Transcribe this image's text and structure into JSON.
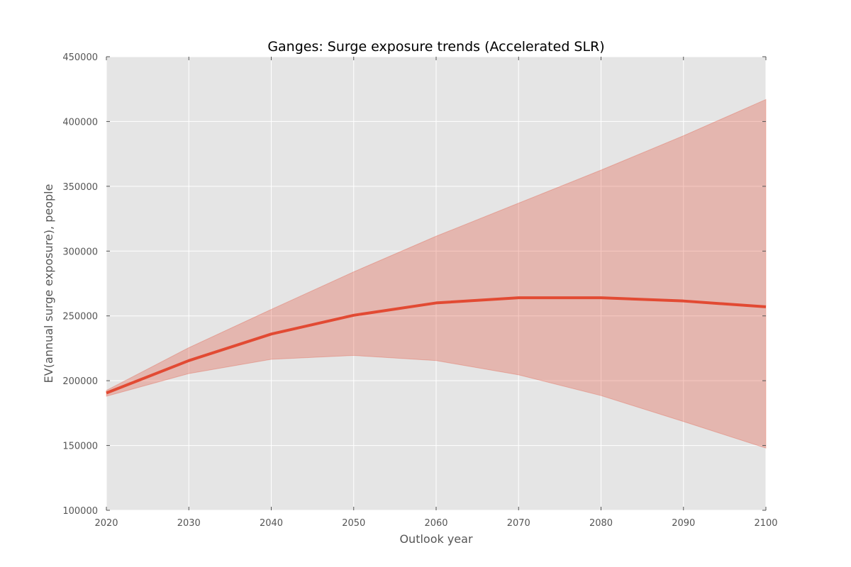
{
  "chart_data": {
    "type": "line",
    "title": "Ganges: Surge exposure trends (Accelerated SLR)",
    "xlabel": "Outlook year",
    "ylabel": "EV(annual surge exposure), people",
    "xlim": [
      2020,
      2100
    ],
    "ylim": [
      100000,
      450000
    ],
    "xticks": [
      "2020",
      "2030",
      "2040",
      "2050",
      "2060",
      "2070",
      "2080",
      "2090",
      "2100"
    ],
    "yticks": [
      "100000",
      "150000",
      "200000",
      "250000",
      "300000",
      "350000",
      "400000",
      "450000"
    ],
    "grid": true,
    "x": [
      2020,
      2030,
      2040,
      2050,
      2060,
      2070,
      2080,
      2090,
      2100
    ],
    "series": [
      {
        "values": [
          190500,
          215500,
          236000,
          250500,
          260000,
          264000,
          264000,
          261500,
          257000
        ],
        "lower": [
          188000,
          205500,
          216500,
          219500,
          215500,
          204500,
          188500,
          168500,
          148000
        ],
        "upper": [
          192500,
          225500,
          255000,
          284000,
          311500,
          337000,
          362500,
          389000,
          417000
        ]
      }
    ],
    "colors": {
      "line": "#e24a33",
      "band": "#e24a33",
      "plot_bg": "#e5e5e5",
      "grid": "#ffffff"
    }
  }
}
